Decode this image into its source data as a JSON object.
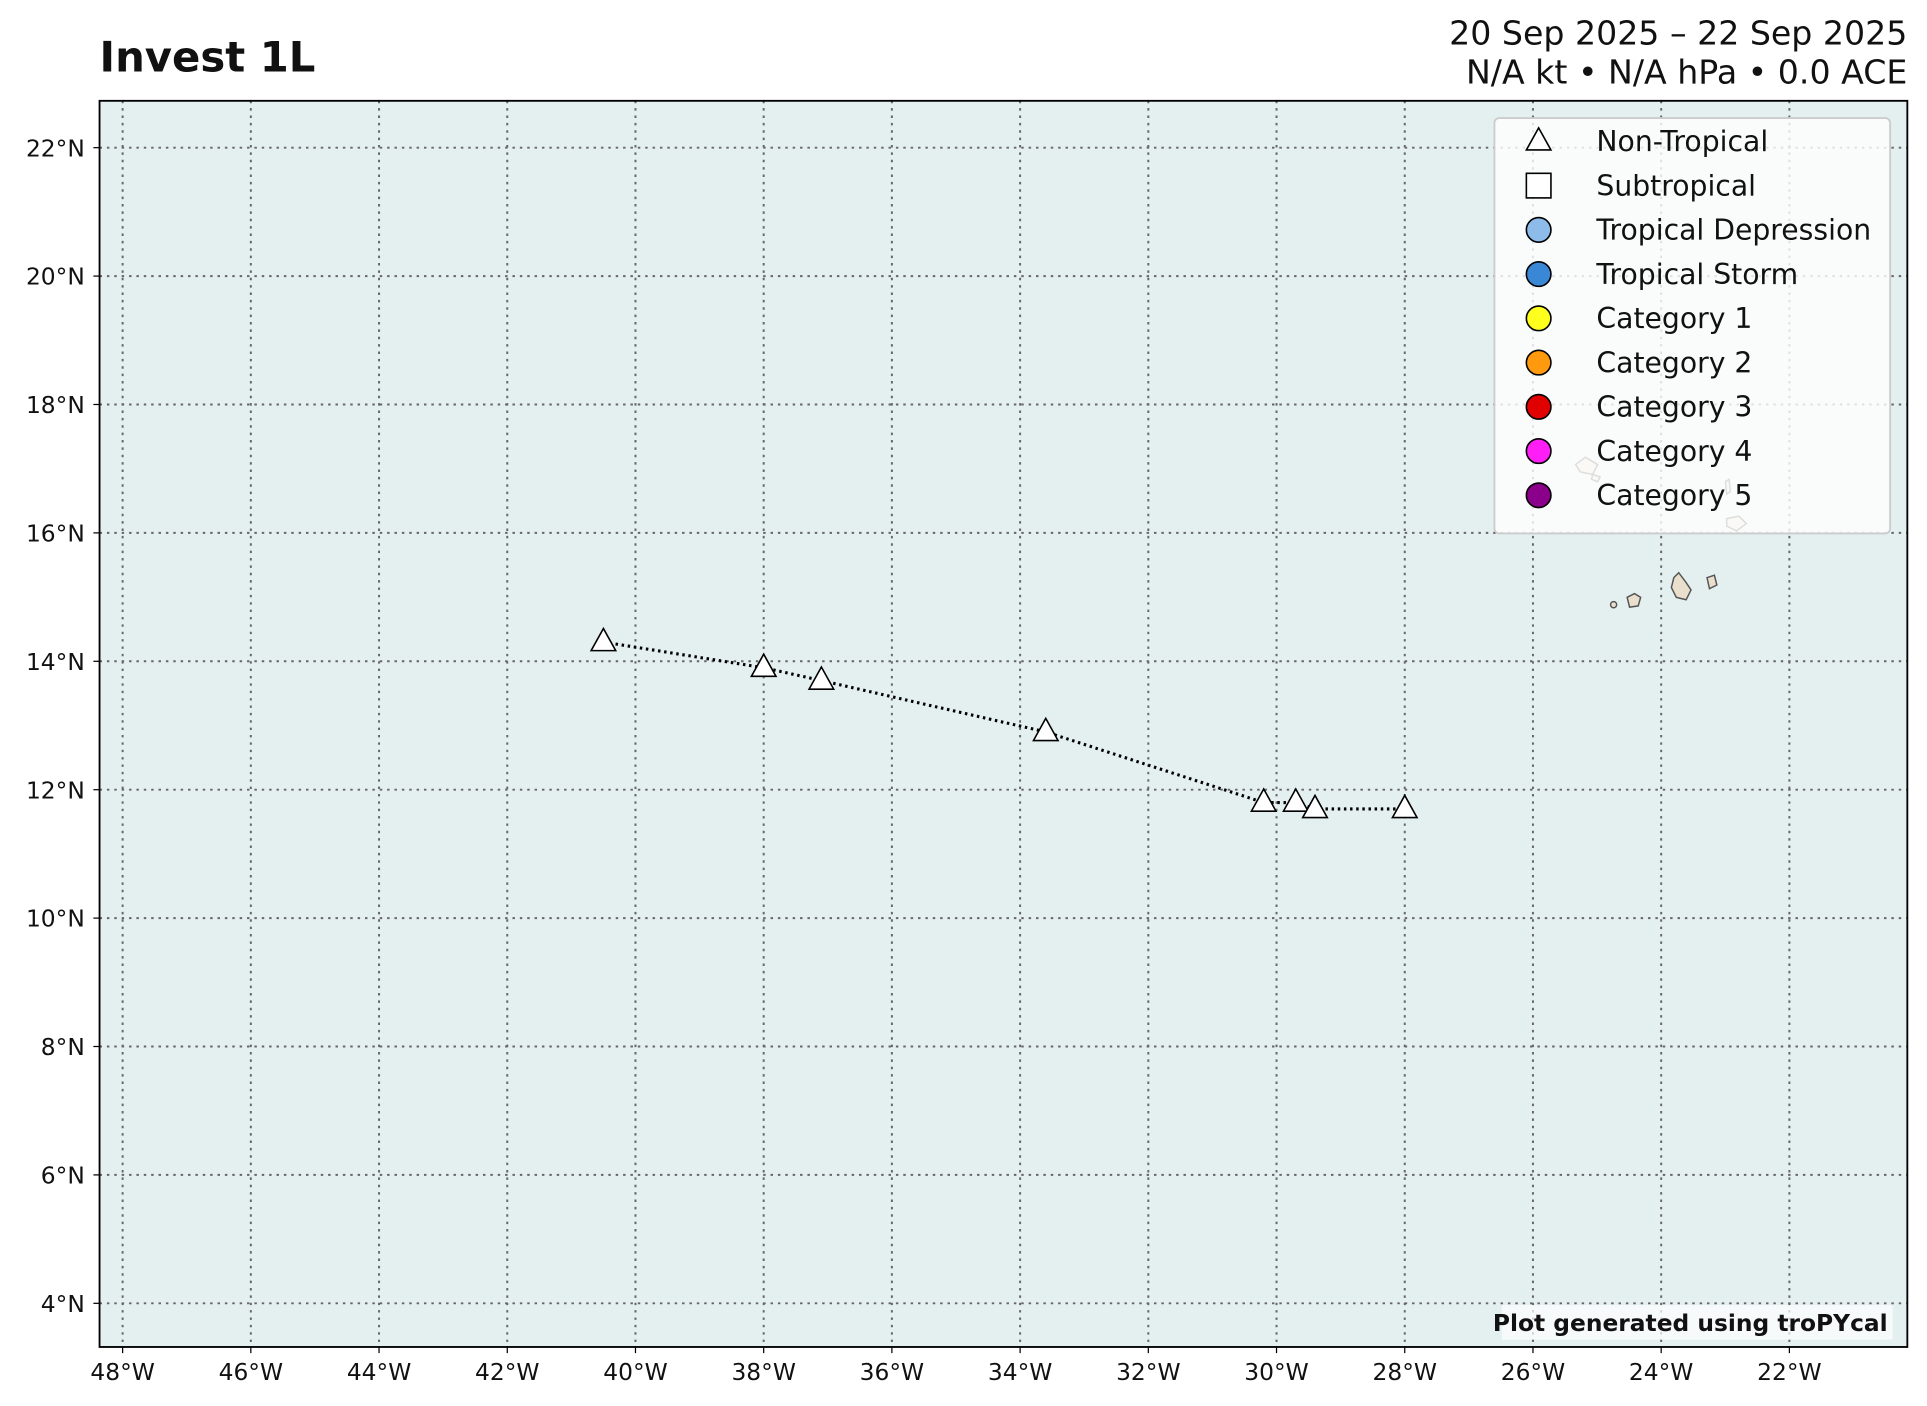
{
  "chart_data": {
    "type": "track",
    "title": "Invest 1L",
    "subtitle": [
      "20 Sep 2025 – 22 Sep 2025",
      "N/A kt • N/A hPa • 0.0 ACE"
    ],
    "credit": "Plot generated using troPYcal",
    "xlim": [
      -48.36,
      -20.16
    ],
    "ylim": [
      3.32,
      22.73
    ],
    "xticks": [
      {
        "value": -48,
        "label": "48°W"
      },
      {
        "value": -46,
        "label": "46°W"
      },
      {
        "value": -44,
        "label": "44°W"
      },
      {
        "value": -42,
        "label": "42°W"
      },
      {
        "value": -40,
        "label": "40°W"
      },
      {
        "value": -38,
        "label": "38°W"
      },
      {
        "value": -36,
        "label": "36°W"
      },
      {
        "value": -34,
        "label": "34°W"
      },
      {
        "value": -32,
        "label": "32°W"
      },
      {
        "value": -30,
        "label": "30°W"
      },
      {
        "value": -28,
        "label": "28°W"
      },
      {
        "value": -26,
        "label": "26°W"
      },
      {
        "value": -24,
        "label": "24°W"
      },
      {
        "value": -22,
        "label": "22°W"
      }
    ],
    "yticks": [
      {
        "value": 4,
        "label": "4°N"
      },
      {
        "value": 6,
        "label": "6°N"
      },
      {
        "value": 8,
        "label": "8°N"
      },
      {
        "value": 10,
        "label": "10°N"
      },
      {
        "value": 12,
        "label": "12°N"
      },
      {
        "value": 14,
        "label": "14°N"
      },
      {
        "value": 16,
        "label": "16°N"
      },
      {
        "value": 18,
        "label": "18°N"
      },
      {
        "value": 20,
        "label": "20°N"
      },
      {
        "value": 22,
        "label": "22°N"
      }
    ],
    "grid": true,
    "series": [
      {
        "marker": "triangle",
        "color": "#ffffff",
        "x": [
          -40.5,
          -38.0,
          -37.1,
          -33.6,
          -30.2,
          -29.7,
          -29.4,
          -28.0
        ],
        "values": [
          14.3,
          13.9,
          13.7,
          12.9,
          11.8,
          11.8,
          11.7,
          11.7
        ]
      }
    ],
    "legend_position": "upper right",
    "legend": [
      {
        "name": "Non-Tropical",
        "marker": "triangle",
        "color": "#ffffff"
      },
      {
        "name": "Subtropical",
        "marker": "square",
        "color": "#ffffff"
      },
      {
        "name": "Tropical Depression",
        "marker": "circle",
        "color": "#8dbbea"
      },
      {
        "name": "Tropical Storm",
        "marker": "circle",
        "color": "#3a87d6"
      },
      {
        "name": "Category 1",
        "marker": "circle",
        "color": "#ffff1e"
      },
      {
        "name": "Category 2",
        "marker": "circle",
        "color": "#ff9a0e"
      },
      {
        "name": "Category 3",
        "marker": "circle",
        "color": "#e00000"
      },
      {
        "name": "Category 4",
        "marker": "circle",
        "color": "#ff1ef5"
      },
      {
        "name": "Category 5",
        "marker": "circle",
        "color": "#8b008b"
      }
    ]
  }
}
